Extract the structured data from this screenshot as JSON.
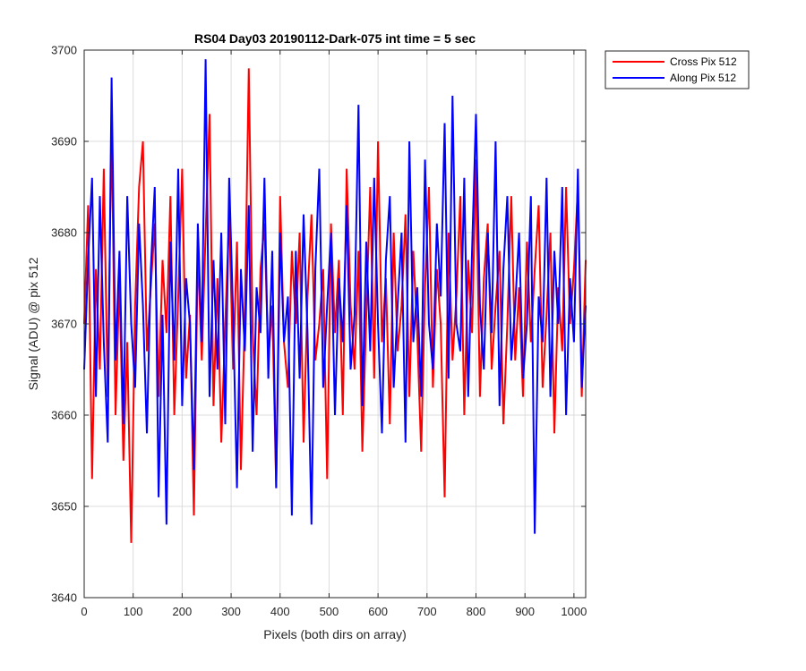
{
  "chart_data": {
    "type": "line",
    "title": "RS04 Day03 20190112-Dark-075 int time = 5 sec",
    "xlabel": "Pixels (both dirs on array)",
    "ylabel": "Signal (ADU) @ pix 512",
    "xlim": [
      0,
      1024
    ],
    "ylim": [
      3640,
      3700
    ],
    "xticks": [
      0,
      100,
      200,
      300,
      400,
      500,
      600,
      700,
      800,
      900,
      1000
    ],
    "yticks": [
      3640,
      3650,
      3660,
      3670,
      3680,
      3690,
      3700
    ],
    "grid": true,
    "legend_position": "outside top-right",
    "series": [
      {
        "name": "Cross Pix 512",
        "color": "#ff0000",
        "x": [
          0,
          8,
          16,
          24,
          32,
          40,
          48,
          56,
          64,
          72,
          80,
          88,
          96,
          104,
          112,
          120,
          128,
          136,
          144,
          152,
          160,
          168,
          176,
          184,
          192,
          200,
          208,
          216,
          224,
          232,
          240,
          248,
          256,
          264,
          272,
          280,
          288,
          296,
          304,
          312,
          320,
          328,
          336,
          344,
          352,
          360,
          368,
          376,
          384,
          392,
          400,
          408,
          416,
          424,
          432,
          440,
          448,
          456,
          464,
          472,
          480,
          488,
          496,
          504,
          512,
          520,
          528,
          536,
          544,
          552,
          560,
          568,
          576,
          584,
          592,
          600,
          608,
          616,
          624,
          632,
          640,
          648,
          656,
          664,
          672,
          680,
          688,
          696,
          704,
          712,
          720,
          728,
          736,
          744,
          752,
          760,
          768,
          776,
          784,
          792,
          800,
          808,
          816,
          824,
          832,
          840,
          848,
          856,
          864,
          872,
          880,
          888,
          896,
          904,
          912,
          920,
          928,
          936,
          944,
          952,
          960,
          968,
          976,
          984,
          992,
          1000,
          1008,
          1016,
          1024
        ],
        "y": [
          3670,
          3683,
          3653,
          3676,
          3665,
          3687,
          3662,
          3692,
          3660,
          3675,
          3655,
          3668,
          3646,
          3672,
          3685,
          3690,
          3667,
          3674,
          3681,
          3662,
          3677,
          3669,
          3684,
          3660,
          3673,
          3687,
          3664,
          3671,
          3649,
          3678,
          3666,
          3680,
          3693,
          3661,
          3675,
          3657,
          3670,
          3682,
          3665,
          3679,
          3654,
          3671,
          3698,
          3669,
          3660,
          3676,
          3681,
          3666,
          3672,
          3652,
          3684,
          3668,
          3663,
          3678,
          3670,
          3680,
          3657,
          3673,
          3682,
          3666,
          3670,
          3676,
          3653,
          3681,
          3669,
          3677,
          3660,
          3687,
          3672,
          3665,
          3678,
          3656,
          3671,
          3685,
          3664,
          3690,
          3668,
          3675,
          3659,
          3680,
          3667,
          3672,
          3682,
          3662,
          3678,
          3669,
          3656,
          3674,
          3685,
          3663,
          3676,
          3670,
          3651,
          3680,
          3666,
          3673,
          3684,
          3660,
          3677,
          3669,
          3688,
          3662,
          3675,
          3681,
          3665,
          3672,
          3678,
          3659,
          3670,
          3684,
          3666,
          3674,
          3662,
          3679,
          3668,
          3676,
          3683,
          3663,
          3671,
          3680,
          3658,
          3674,
          3667,
          3685,
          3670,
          3676,
          3685,
          3662,
          3677
        ]
      },
      {
        "name": "Along Pix 512",
        "color": "#0000ff",
        "x": [
          0,
          8,
          16,
          24,
          32,
          40,
          48,
          56,
          64,
          72,
          80,
          88,
          96,
          104,
          112,
          120,
          128,
          136,
          144,
          152,
          160,
          168,
          176,
          184,
          192,
          200,
          208,
          216,
          224,
          232,
          240,
          248,
          256,
          264,
          272,
          280,
          288,
          296,
          304,
          312,
          320,
          328,
          336,
          344,
          352,
          360,
          368,
          376,
          384,
          392,
          400,
          408,
          416,
          424,
          432,
          440,
          448,
          456,
          464,
          472,
          480,
          488,
          496,
          504,
          512,
          520,
          528,
          536,
          544,
          552,
          560,
          568,
          576,
          584,
          592,
          600,
          608,
          616,
          624,
          632,
          640,
          648,
          656,
          664,
          672,
          680,
          688,
          696,
          704,
          712,
          720,
          728,
          736,
          744,
          752,
          760,
          768,
          776,
          784,
          792,
          800,
          808,
          816,
          824,
          832,
          840,
          848,
          856,
          864,
          872,
          880,
          888,
          896,
          904,
          912,
          920,
          928,
          936,
          944,
          952,
          960,
          968,
          976,
          984,
          992,
          1000,
          1008,
          1016,
          1024
        ],
        "y": [
          3665,
          3677,
          3686,
          3662,
          3684,
          3668,
          3657,
          3697,
          3666,
          3678,
          3659,
          3684,
          3670,
          3663,
          3681,
          3672,
          3658,
          3676,
          3685,
          3651,
          3671,
          3648,
          3679,
          3666,
          3687,
          3661,
          3675,
          3670,
          3654,
          3681,
          3668,
          3699,
          3662,
          3677,
          3665,
          3680,
          3659,
          3686,
          3671,
          3652,
          3676,
          3667,
          3683,
          3656,
          3674,
          3669,
          3686,
          3664,
          3678,
          3652,
          3680,
          3668,
          3673,
          3649,
          3678,
          3664,
          3682,
          3669,
          3648,
          3676,
          3687,
          3663,
          3672,
          3680,
          3660,
          3675,
          3668,
          3683,
          3665,
          3671,
          3694,
          3661,
          3679,
          3667,
          3686,
          3670,
          3658,
          3677,
          3684,
          3663,
          3672,
          3680,
          3657,
          3690,
          3668,
          3674,
          3662,
          3688,
          3670,
          3665,
          3681,
          3673,
          3692,
          3664,
          3695,
          3670,
          3667,
          3686,
          3662,
          3678,
          3693,
          3672,
          3665,
          3680,
          3669,
          3690,
          3661,
          3676,
          3684,
          3666,
          3672,
          3680,
          3664,
          3670,
          3684,
          3647,
          3673,
          3668,
          3686,
          3662,
          3678,
          3670,
          3685,
          3660,
          3675,
          3668,
          3687,
          3663,
          3672
        ]
      }
    ]
  }
}
